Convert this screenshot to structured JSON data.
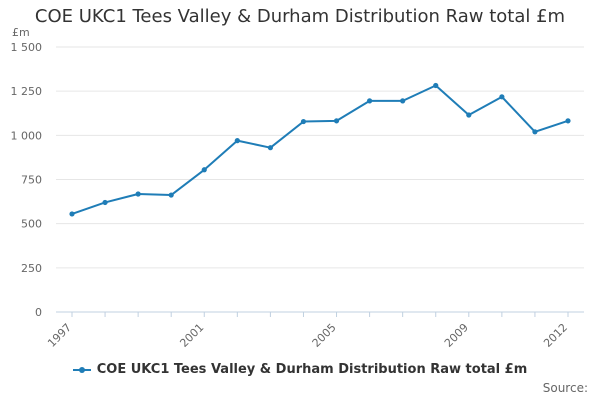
{
  "chart_data": {
    "type": "line",
    "title": "COE UKC1 Tees Valley & Durham Distribution Raw total £m",
    "ylabel": "£m",
    "xlabel": "",
    "x": [
      1997,
      1998,
      1999,
      2000,
      2001,
      2002,
      2003,
      2004,
      2005,
      2006,
      2007,
      2008,
      2009,
      2010,
      2011,
      2012
    ],
    "series": [
      {
        "name": "COE UKC1 Tees Valley & Durham Distribution Raw total £m",
        "values": [
          555,
          620,
          668,
          662,
          805,
          970,
          930,
          1078,
          1082,
          1195,
          1195,
          1282,
          1115,
          1218,
          1020,
          1082
        ]
      }
    ],
    "xticks": [
      1997,
      2001,
      2005,
      2009,
      2012
    ],
    "xtick_labels": [
      "1997",
      "2001",
      "2005",
      "2009",
      "2012"
    ],
    "ylim": [
      0,
      1500
    ],
    "yticks": [
      0,
      250,
      500,
      750,
      1000,
      1250,
      1500
    ],
    "ytick_labels": [
      "0",
      "250",
      "500",
      "750",
      "1 000",
      "1 250",
      "1 500"
    ],
    "grid": "horizontal",
    "legend": "bottom",
    "source_label": "Source:",
    "colors": {
      "series": "#1f7db7",
      "grid": "#e6e6e6",
      "axis": "#c0d0e0"
    }
  }
}
